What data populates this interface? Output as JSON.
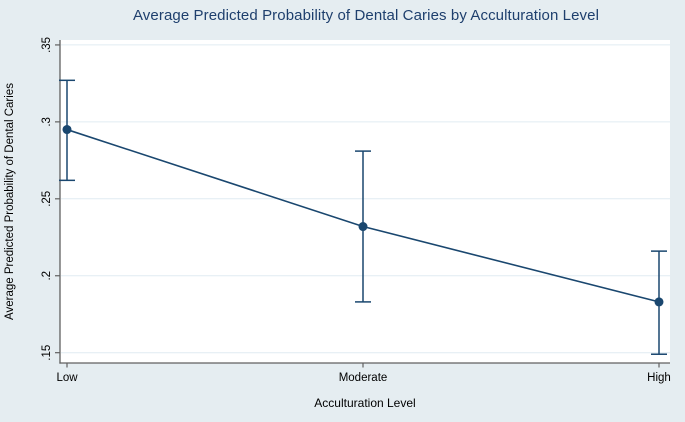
{
  "figure": {
    "kind": "stata-style statistics figure"
  },
  "colors": {
    "background": "#e5edf1",
    "plot_background": "#ffffff",
    "gridline": "#e0ecf2",
    "axis_line": "#606060",
    "tick_text": "#000000",
    "title_text": "#1e3f6d",
    "series": "#1a476f"
  },
  "chart_data": {
    "type": "line",
    "title": "Average Predicted Probability of Dental Caries by Acculturation Level",
    "xlabel": "Acculturation Level",
    "ylabel": "Average Predicted Probability of Dental Caries",
    "categories": [
      "Low",
      "Moderate",
      "High"
    ],
    "series": [
      {
        "name": "Average predicted probability of dental caries",
        "values": [
          0.295,
          0.232,
          0.183
        ],
        "ci_low": [
          0.262,
          0.183,
          0.149
        ],
        "ci_high": [
          0.327,
          0.281,
          0.216
        ]
      }
    ],
    "error_bars": true,
    "marker": "filled-circle",
    "yticks": [
      0.15,
      0.2,
      0.25,
      0.3,
      0.35
    ],
    "ytick_labels": [
      ".15",
      ".2",
      ".25",
      ".3",
      ".35"
    ],
    "ytick_label_angle": 90,
    "ylim": [
      0.1433,
      0.3532
    ],
    "grid": true,
    "legend": "none"
  }
}
